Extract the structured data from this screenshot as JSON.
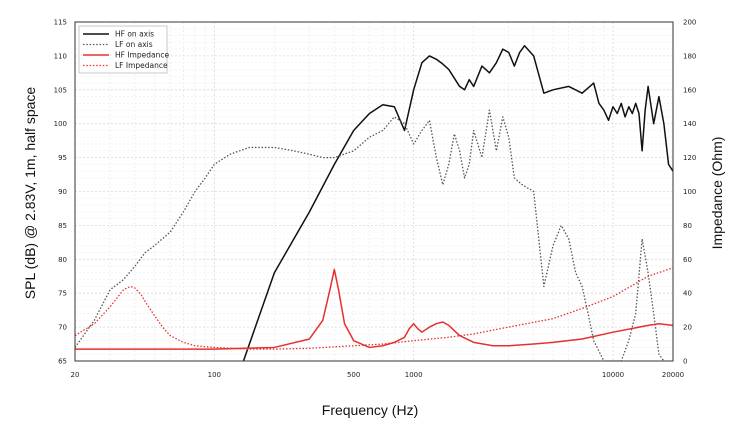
{
  "chart_data": {
    "type": "line",
    "xlabel": "Frequency (Hz)",
    "ylabel_left": "SPL (dB) @ 2.83V, 1m, half space",
    "ylabel_right": "Impedance (Ohm)",
    "x_scale": "log",
    "xlim": [
      20,
      20000
    ],
    "ylim_left": [
      65,
      115
    ],
    "ylim_right": [
      0,
      200
    ],
    "x_ticks": [
      20,
      100,
      500,
      1000,
      10000,
      20000
    ],
    "x_tick_labels": [
      "20",
      "100",
      "500",
      "1000",
      "10000",
      "20000"
    ],
    "y_left_ticks": [
      65,
      70,
      75,
      80,
      85,
      90,
      95,
      100,
      105,
      110,
      115
    ],
    "y_right_ticks": [
      0,
      20,
      40,
      60,
      80,
      100,
      120,
      140,
      160,
      180,
      200
    ],
    "grid": true,
    "legend_position": "top-left",
    "series": [
      {
        "name": "HF on axis",
        "axis": "left",
        "color": "#111111",
        "style": "solid",
        "x": [
          140,
          200,
          300,
          400,
          500,
          600,
          700,
          800,
          900,
          1000,
          1100,
          1200,
          1300,
          1400,
          1500,
          1700,
          1800,
          1900,
          2000,
          2200,
          2400,
          2600,
          2800,
          3000,
          3200,
          3400,
          3600,
          4000,
          4500,
          5000,
          6000,
          7000,
          8000,
          8500,
          9000,
          9500,
          10000,
          10500,
          11000,
          11500,
          12000,
          12500,
          13000,
          13500,
          14000,
          14500,
          15000,
          16000,
          17000,
          18000,
          19000,
          20000
        ],
        "y": [
          65,
          78,
          87,
          94,
          99,
          101.5,
          102.8,
          102.5,
          99,
          105,
          109,
          110,
          109.5,
          108.8,
          108,
          105.5,
          105,
          106.5,
          105.5,
          108.5,
          107.5,
          109,
          111,
          110.5,
          108.5,
          110.5,
          111.5,
          110,
          104.5,
          105,
          105.5,
          104.5,
          106,
          103,
          102,
          100.5,
          102.5,
          101.5,
          103,
          101,
          102.5,
          101.5,
          103,
          101.5,
          96,
          102,
          105.5,
          100,
          104,
          100,
          94,
          93
        ]
      },
      {
        "name": "LF on axis",
        "axis": "left",
        "color": "#555555",
        "style": "dotted",
        "x": [
          20,
          25,
          30,
          35,
          40,
          45,
          50,
          60,
          70,
          80,
          90,
          100,
          120,
          150,
          200,
          250,
          300,
          350,
          400,
          500,
          600,
          700,
          800,
          900,
          1000,
          1100,
          1200,
          1300,
          1400,
          1500,
          1600,
          1700,
          1800,
          1900,
          2000,
          2200,
          2400,
          2600,
          2800,
          3000,
          3200,
          3500,
          4000,
          4500,
          5000,
          5500,
          6000,
          6500,
          7000,
          7500,
          8000,
          9000,
          10000,
          11000,
          12000,
          13000,
          14000,
          15000,
          16000,
          17000,
          18000
        ],
        "y": [
          67,
          71,
          75.5,
          77,
          79,
          81,
          82,
          84,
          87,
          90,
          92,
          94,
          95.5,
          96.5,
          96.5,
          96,
          95.5,
          95,
          95,
          96,
          98,
          99,
          101,
          100,
          97,
          99,
          100.5,
          95,
          91,
          94,
          98.5,
          96,
          92,
          94,
          99,
          95,
          102,
          96,
          101,
          98,
          92,
          91,
          90,
          76,
          82,
          85,
          83,
          78,
          76,
          72,
          68,
          65,
          65,
          65,
          68,
          72,
          83,
          78,
          72,
          66,
          65
        ]
      },
      {
        "name": "HF Impedance",
        "axis": "right",
        "color": "#e53030",
        "style": "solid",
        "x": [
          20,
          50,
          100,
          200,
          300,
          350,
          380,
          400,
          420,
          450,
          500,
          600,
          700,
          800,
          900,
          950,
          1000,
          1050,
          1100,
          1200,
          1300,
          1400,
          1500,
          1700,
          2000,
          2500,
          3000,
          4000,
          5000,
          7000,
          10000,
          15000,
          17000,
          20000
        ],
        "y": [
          7,
          7,
          7,
          8,
          13,
          24,
          42,
          54,
          42,
          22,
          12,
          8,
          9,
          11,
          14,
          19,
          22,
          19,
          17,
          20,
          22,
          23,
          21,
          15,
          11,
          9,
          9,
          10,
          11,
          13,
          17,
          21,
          22,
          21
        ]
      },
      {
        "name": "LF Impedance",
        "axis": "right",
        "color": "#e53030",
        "style": "dotted",
        "x": [
          20,
          25,
          30,
          35,
          38,
          40,
          43,
          45,
          50,
          55,
          60,
          70,
          80,
          100,
          150,
          200,
          300,
          500,
          700,
          1000,
          1500,
          2000,
          3000,
          5000,
          7000,
          10000,
          15000,
          20000
        ],
        "y": [
          15,
          22,
          32,
          42,
          44,
          43,
          39,
          35,
          27,
          20,
          15,
          11,
          9,
          8,
          7,
          7,
          7.5,
          9,
          10,
          12,
          14,
          16,
          20,
          25,
          31,
          38,
          50,
          55
        ]
      }
    ]
  }
}
